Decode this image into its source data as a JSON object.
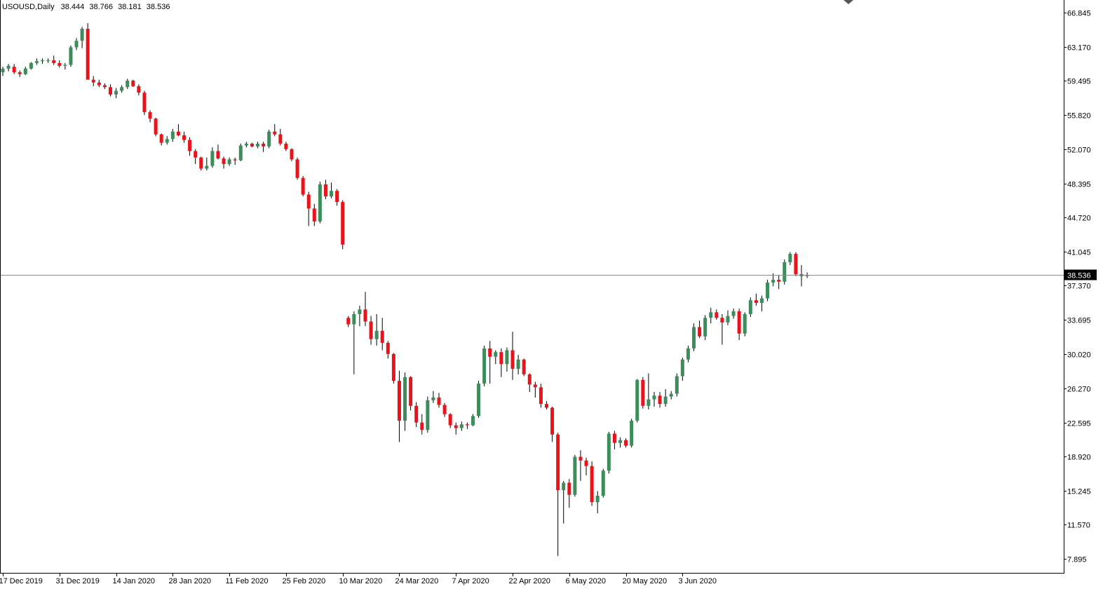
{
  "header": {
    "symbol": "USOUSD,Daily",
    "open": "38.444",
    "high": "38.766",
    "low": "38.181",
    "close": "38.536"
  },
  "colors": {
    "background": "#ffffff",
    "bull": "#3d8c5b",
    "bear": "#e8141c",
    "wick": "#000000",
    "axis": "#000000",
    "current_price_line": "#8a8a8a",
    "current_price_label_bg": "#000000",
    "current_price_label_text": "#ffffff"
  },
  "chart_data": {
    "type": "candlestick",
    "title": "USOUSD,Daily",
    "ylim": [
      6.6,
      67.9
    ],
    "y_ticks": [
      "66.845",
      "63.170",
      "59.495",
      "55.820",
      "52.070",
      "48.395",
      "44.720",
      "41.045",
      "37.370",
      "33.695",
      "30.020",
      "26.270",
      "22.595",
      "18.920",
      "15.245",
      "11.570",
      "7.895"
    ],
    "current_price": "38.536",
    "x_ticks": [
      {
        "label": "17 Dec 2019",
        "index": 0
      },
      {
        "label": "31 Dec 2019",
        "index": 10
      },
      {
        "label": "14 Jan 2020",
        "index": 20
      },
      {
        "label": "28 Jan 2020",
        "index": 30
      },
      {
        "label": "11 Feb 2020",
        "index": 40
      },
      {
        "label": "25 Feb 2020",
        "index": 50
      },
      {
        "label": "10 Mar 2020",
        "index": 60
      },
      {
        "label": "24 Mar 2020",
        "index": 70
      },
      {
        "label": "7 Apr 2020",
        "index": 80
      },
      {
        "label": "22 Apr 2020",
        "index": 90
      },
      {
        "label": "6 May 2020",
        "index": 100
      },
      {
        "label": "20 May 2020",
        "index": 110
      },
      {
        "label": "3 Jun 2020",
        "index": 120
      }
    ],
    "candles": [
      [
        60.4,
        61.0,
        60.0,
        60.8
      ],
      [
        60.8,
        61.3,
        60.5,
        61.1
      ],
      [
        61.0,
        61.3,
        60.2,
        60.4
      ],
      [
        60.4,
        60.6,
        59.9,
        60.2
      ],
      [
        60.2,
        61.0,
        60.1,
        60.8
      ],
      [
        60.8,
        61.5,
        60.7,
        61.4
      ],
      [
        61.4,
        61.9,
        61.2,
        61.6
      ],
      [
        61.6,
        61.9,
        61.3,
        61.7
      ],
      [
        61.7,
        61.9,
        61.4,
        61.7
      ],
      [
        61.7,
        62.2,
        61.2,
        61.4
      ],
      [
        61.4,
        61.7,
        60.9,
        61.1
      ],
      [
        61.1,
        61.4,
        60.7,
        61.2
      ],
      [
        61.2,
        63.3,
        61.0,
        63.1
      ],
      [
        63.1,
        64.1,
        62.8,
        63.8
      ],
      [
        63.8,
        65.3,
        63.0,
        65.1
      ],
      [
        65.1,
        65.7,
        59.6,
        59.6
      ],
      [
        59.6,
        60.0,
        58.9,
        59.3
      ],
      [
        59.3,
        59.6,
        58.8,
        59.0
      ],
      [
        59.0,
        59.2,
        58.6,
        58.8
      ],
      [
        58.8,
        59.1,
        57.8,
        58.0
      ],
      [
        58.0,
        58.7,
        57.6,
        58.4
      ],
      [
        58.4,
        59.0,
        58.2,
        58.8
      ],
      [
        58.8,
        59.7,
        58.6,
        59.5
      ],
      [
        59.5,
        59.6,
        58.8,
        58.9
      ],
      [
        58.9,
        59.1,
        57.9,
        58.2
      ],
      [
        58.2,
        58.4,
        55.8,
        56.1
      ],
      [
        56.1,
        56.3,
        55.0,
        55.4
      ],
      [
        55.4,
        55.5,
        53.5,
        53.7
      ],
      [
        53.7,
        53.8,
        52.5,
        52.8
      ],
      [
        52.8,
        53.5,
        52.6,
        53.2
      ],
      [
        53.2,
        54.3,
        52.9,
        54.0
      ],
      [
        54.0,
        54.8,
        53.5,
        53.6
      ],
      [
        53.6,
        54.0,
        52.8,
        53.1
      ],
      [
        53.1,
        53.4,
        51.4,
        51.9
      ],
      [
        51.9,
        52.1,
        50.5,
        51.2
      ],
      [
        51.2,
        51.3,
        49.8,
        50.0
      ],
      [
        50.0,
        51.2,
        49.8,
        50.3
      ],
      [
        50.3,
        52.3,
        50.1,
        51.9
      ],
      [
        51.9,
        52.6,
        51.0,
        51.1
      ],
      [
        51.1,
        51.3,
        50.0,
        50.5
      ],
      [
        50.5,
        51.2,
        50.3,
        51.0
      ],
      [
        51.0,
        51.2,
        50.4,
        50.9
      ],
      [
        50.9,
        52.7,
        50.8,
        52.5
      ],
      [
        52.5,
        52.9,
        52.3,
        52.7
      ],
      [
        52.7,
        52.8,
        52.3,
        52.4
      ],
      [
        52.4,
        52.9,
        52.2,
        52.7
      ],
      [
        52.7,
        52.9,
        51.8,
        52.4
      ],
      [
        52.4,
        54.2,
        52.2,
        54.0
      ],
      [
        54.0,
        54.8,
        53.5,
        53.7
      ],
      [
        53.7,
        54.3,
        52.5,
        52.7
      ],
      [
        52.7,
        52.9,
        51.9,
        52.1
      ],
      [
        52.1,
        52.2,
        50.8,
        51.0
      ],
      [
        51.0,
        51.2,
        48.8,
        49.0
      ],
      [
        49.0,
        49.2,
        47.0,
        47.2
      ],
      [
        47.2,
        47.5,
        43.8,
        45.7
      ],
      [
        45.7,
        46.2,
        43.8,
        44.3
      ],
      [
        44.3,
        48.6,
        44.1,
        48.3
      ],
      [
        48.3,
        48.8,
        46.7,
        47.0
      ],
      [
        47.0,
        48.5,
        46.8,
        47.6
      ],
      [
        47.6,
        47.8,
        46.0,
        46.4
      ],
      [
        46.4,
        46.6,
        41.3,
        41.8
      ],
      [
        33.9,
        34.1,
        32.9,
        33.2
      ],
      [
        33.2,
        34.6,
        27.8,
        34.3
      ],
      [
        34.3,
        35.2,
        33.0,
        34.8
      ],
      [
        34.8,
        36.7,
        33.0,
        33.5
      ],
      [
        33.5,
        34.1,
        31.0,
        31.6
      ],
      [
        31.6,
        34.3,
        30.9,
        32.5
      ],
      [
        32.5,
        33.9,
        30.4,
        31.2
      ],
      [
        31.2,
        31.4,
        29.5,
        30.0
      ],
      [
        30.0,
        30.1,
        26.8,
        27.1
      ],
      [
        27.1,
        28.2,
        20.5,
        22.8
      ],
      [
        22.8,
        28.0,
        21.7,
        27.5
      ],
      [
        27.5,
        27.6,
        23.9,
        24.4
      ],
      [
        24.4,
        24.8,
        22.1,
        22.6
      ],
      [
        22.6,
        23.5,
        21.3,
        21.8
      ],
      [
        21.8,
        25.4,
        21.5,
        25.0
      ],
      [
        25.0,
        26.0,
        24.7,
        25.3
      ],
      [
        25.3,
        25.8,
        24.2,
        24.5
      ],
      [
        24.5,
        24.7,
        23.2,
        23.5
      ],
      [
        23.5,
        23.6,
        22.0,
        22.3
      ],
      [
        22.3,
        22.6,
        21.3,
        22.0
      ],
      [
        22.0,
        22.7,
        21.7,
        22.4
      ],
      [
        22.4,
        22.6,
        21.9,
        22.3
      ],
      [
        22.3,
        23.5,
        22.2,
        23.3
      ],
      [
        23.3,
        27.1,
        23.1,
        26.8
      ],
      [
        26.8,
        30.9,
        26.5,
        30.6
      ],
      [
        30.6,
        31.4,
        26.8,
        29.7
      ],
      [
        29.7,
        30.4,
        28.9,
        30.2
      ],
      [
        30.2,
        30.6,
        27.5,
        28.9
      ],
      [
        28.9,
        30.7,
        28.1,
        30.4
      ],
      [
        30.4,
        32.4,
        27.2,
        28.4
      ],
      [
        28.4,
        29.9,
        27.8,
        29.4
      ],
      [
        29.4,
        29.5,
        27.6,
        27.8
      ],
      [
        27.8,
        27.9,
        25.9,
        26.7
      ],
      [
        26.7,
        27.0,
        25.3,
        26.4
      ],
      [
        26.4,
        26.8,
        24.2,
        24.6
      ],
      [
        24.6,
        24.9,
        24.0,
        24.2
      ],
      [
        24.2,
        24.3,
        20.5,
        21.3
      ],
      [
        21.3,
        21.5,
        8.2,
        15.3
      ],
      [
        15.3,
        16.3,
        11.7,
        16.1
      ],
      [
        16.1,
        16.5,
        13.4,
        14.8
      ],
      [
        14.8,
        19.1,
        14.6,
        18.9
      ],
      [
        18.9,
        19.6,
        16.3,
        18.5
      ],
      [
        18.5,
        18.8,
        16.9,
        17.9
      ],
      [
        17.9,
        18.4,
        13.6,
        14.0
      ],
      [
        14.0,
        15.2,
        12.8,
        14.7
      ],
      [
        14.7,
        17.6,
        14.5,
        17.4
      ],
      [
        17.4,
        21.6,
        17.1,
        21.4
      ],
      [
        21.4,
        21.7,
        19.7,
        20.4
      ],
      [
        20.4,
        21.0,
        19.9,
        20.7
      ],
      [
        20.7,
        20.9,
        19.9,
        20.1
      ],
      [
        20.1,
        23.0,
        19.9,
        22.8
      ],
      [
        22.8,
        27.3,
        22.6,
        27.2
      ],
      [
        27.2,
        27.5,
        24.1,
        24.4
      ],
      [
        24.4,
        27.9,
        24.0,
        25.1
      ],
      [
        25.1,
        25.9,
        24.3,
        25.5
      ],
      [
        25.5,
        25.9,
        24.2,
        24.6
      ],
      [
        24.6,
        26.2,
        24.3,
        25.4
      ],
      [
        25.4,
        26.0,
        25.1,
        25.7
      ],
      [
        25.7,
        27.9,
        25.4,
        27.6
      ],
      [
        27.6,
        29.6,
        27.1,
        29.4
      ],
      [
        29.4,
        30.9,
        29.1,
        30.6
      ],
      [
        30.6,
        33.3,
        30.3,
        32.9
      ],
      [
        32.9,
        33.6,
        31.7,
        31.9
      ],
      [
        31.9,
        34.2,
        31.5,
        33.9
      ],
      [
        33.9,
        35.0,
        33.3,
        34.5
      ],
      [
        34.5,
        34.8,
        33.7,
        33.9
      ],
      [
        33.9,
        34.3,
        31.0,
        33.4
      ],
      [
        33.4,
        34.7,
        33.1,
        34.1
      ],
      [
        34.1,
        34.9,
        33.8,
        34.6
      ],
      [
        34.6,
        34.9,
        31.5,
        32.2
      ],
      [
        32.2,
        34.5,
        31.9,
        34.3
      ],
      [
        34.3,
        36.1,
        34.0,
        35.8
      ],
      [
        35.8,
        36.5,
        35.2,
        35.5
      ],
      [
        35.5,
        36.3,
        34.6,
        36.0
      ],
      [
        36.0,
        38.0,
        35.7,
        37.7
      ],
      [
        37.7,
        38.7,
        37.3,
        38.0
      ],
      [
        38.0,
        38.5,
        37.0,
        37.8
      ],
      [
        37.8,
        40.2,
        37.5,
        39.9
      ],
      [
        39.9,
        41.0,
        39.6,
        40.8
      ],
      [
        40.8,
        41.0,
        38.4,
        38.6
      ],
      [
        38.6,
        39.6,
        37.3,
        38.4
      ],
      [
        38.4,
        38.8,
        38.2,
        38.5
      ]
    ]
  }
}
